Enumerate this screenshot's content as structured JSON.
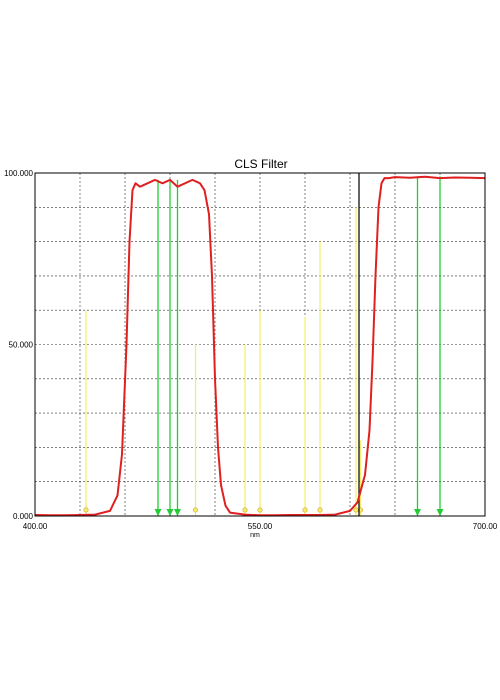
{
  "chart_data": {
    "type": "line",
    "title": "CLS Filter",
    "xlabel": "nm",
    "ylabel": "",
    "xlim": [
      400,
      700
    ],
    "ylim": [
      0,
      100
    ],
    "x_ticks": [
      400,
      550,
      700
    ],
    "x_tick_labels": [
      "400.00",
      "550.00",
      "700.00"
    ],
    "y_ticks": [
      0,
      50,
      100
    ],
    "y_tick_labels": [
      "0.000",
      "50.000",
      "100.000"
    ],
    "grid": true,
    "series": [
      {
        "color": "#e02020",
        "x": [
          400,
          410,
          420,
          430,
          440,
          450,
          455,
          458,
          461,
          463,
          465,
          467,
          470,
          475,
          480,
          485,
          490,
          495,
          500,
          505,
          510,
          513,
          516,
          518,
          520,
          522,
          524,
          527,
          530,
          540,
          550,
          560,
          570,
          580,
          590,
          600,
          610,
          615,
          620,
          623,
          625,
          627,
          629,
          631,
          633,
          636,
          640,
          650,
          660,
          670,
          680,
          690,
          700
        ],
        "y": [
          0.3,
          0.2,
          0.2,
          0.3,
          0.4,
          1.5,
          6,
          18,
          50,
          80,
          95,
          97,
          96,
          97,
          98,
          97,
          98,
          96,
          97,
          98,
          97,
          95,
          88,
          70,
          40,
          20,
          9,
          3,
          1,
          0.4,
          0.2,
          0.2,
          0.3,
          0.3,
          0.3,
          0.4,
          1.5,
          4,
          12,
          25,
          45,
          70,
          90,
          97,
          98.5,
          98.5,
          98.8,
          98.6,
          98.9,
          98.5,
          98.7,
          98.6,
          98.5
        ]
      }
    ],
    "markers": [
      {
        "type": "green",
        "x": 482,
        "height": 98
      },
      {
        "type": "green",
        "x": 490,
        "height": 98
      },
      {
        "type": "green",
        "x": 495,
        "height": 98
      },
      {
        "type": "green",
        "x": 655,
        "height": 99
      },
      {
        "type": "green",
        "x": 670,
        "height": 99
      },
      {
        "type": "yellow",
        "x": 434,
        "height": 60
      },
      {
        "type": "yellow",
        "x": 507,
        "height": 50
      },
      {
        "type": "yellow",
        "x": 540,
        "height": 50
      },
      {
        "type": "yellow",
        "x": 550,
        "height": 60
      },
      {
        "type": "yellow",
        "x": 580,
        "height": 58
      },
      {
        "type": "yellow",
        "x": 590,
        "height": 80
      },
      {
        "type": "yellow",
        "x": 614,
        "height": 90
      },
      {
        "type": "yellow",
        "x": 617,
        "height": 22
      },
      {
        "type": "black",
        "x": 616,
        "height": 100
      }
    ]
  }
}
